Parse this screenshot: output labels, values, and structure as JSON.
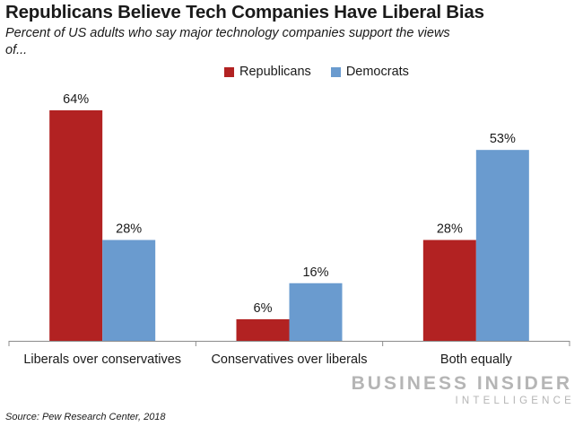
{
  "header": {
    "title": "Republicans Believe Tech Companies Have Liberal Bias",
    "subtitle": "Percent of US adults who say major technology companies support the views of..."
  },
  "chart_data": {
    "type": "bar",
    "title": "Republicans Believe Tech Companies Have Liberal Bias",
    "subtitle": "Percent of US adults who say major technology companies support the views of...",
    "categories": [
      "Liberals over conservatives",
      "Conservatives over liberals",
      "Both equally"
    ],
    "series": [
      {
        "name": "Republicans",
        "values": [
          64,
          6,
          28
        ],
        "labels": [
          "64%",
          "6%",
          "28%"
        ],
        "color": "#b22222"
      },
      {
        "name": "Democrats",
        "values": [
          28,
          16,
          53
        ],
        "labels": [
          "28%",
          "16%",
          "53%"
        ],
        "color": "#6a9bcf"
      }
    ],
    "ylim": [
      0,
      64
    ],
    "legend_position": "top-center",
    "grid": false
  },
  "footer": {
    "source": "Source: Pew Research Center, 2018",
    "logo_main": "BUSINESS INSIDER",
    "logo_sub": "INTELLIGENCE"
  }
}
